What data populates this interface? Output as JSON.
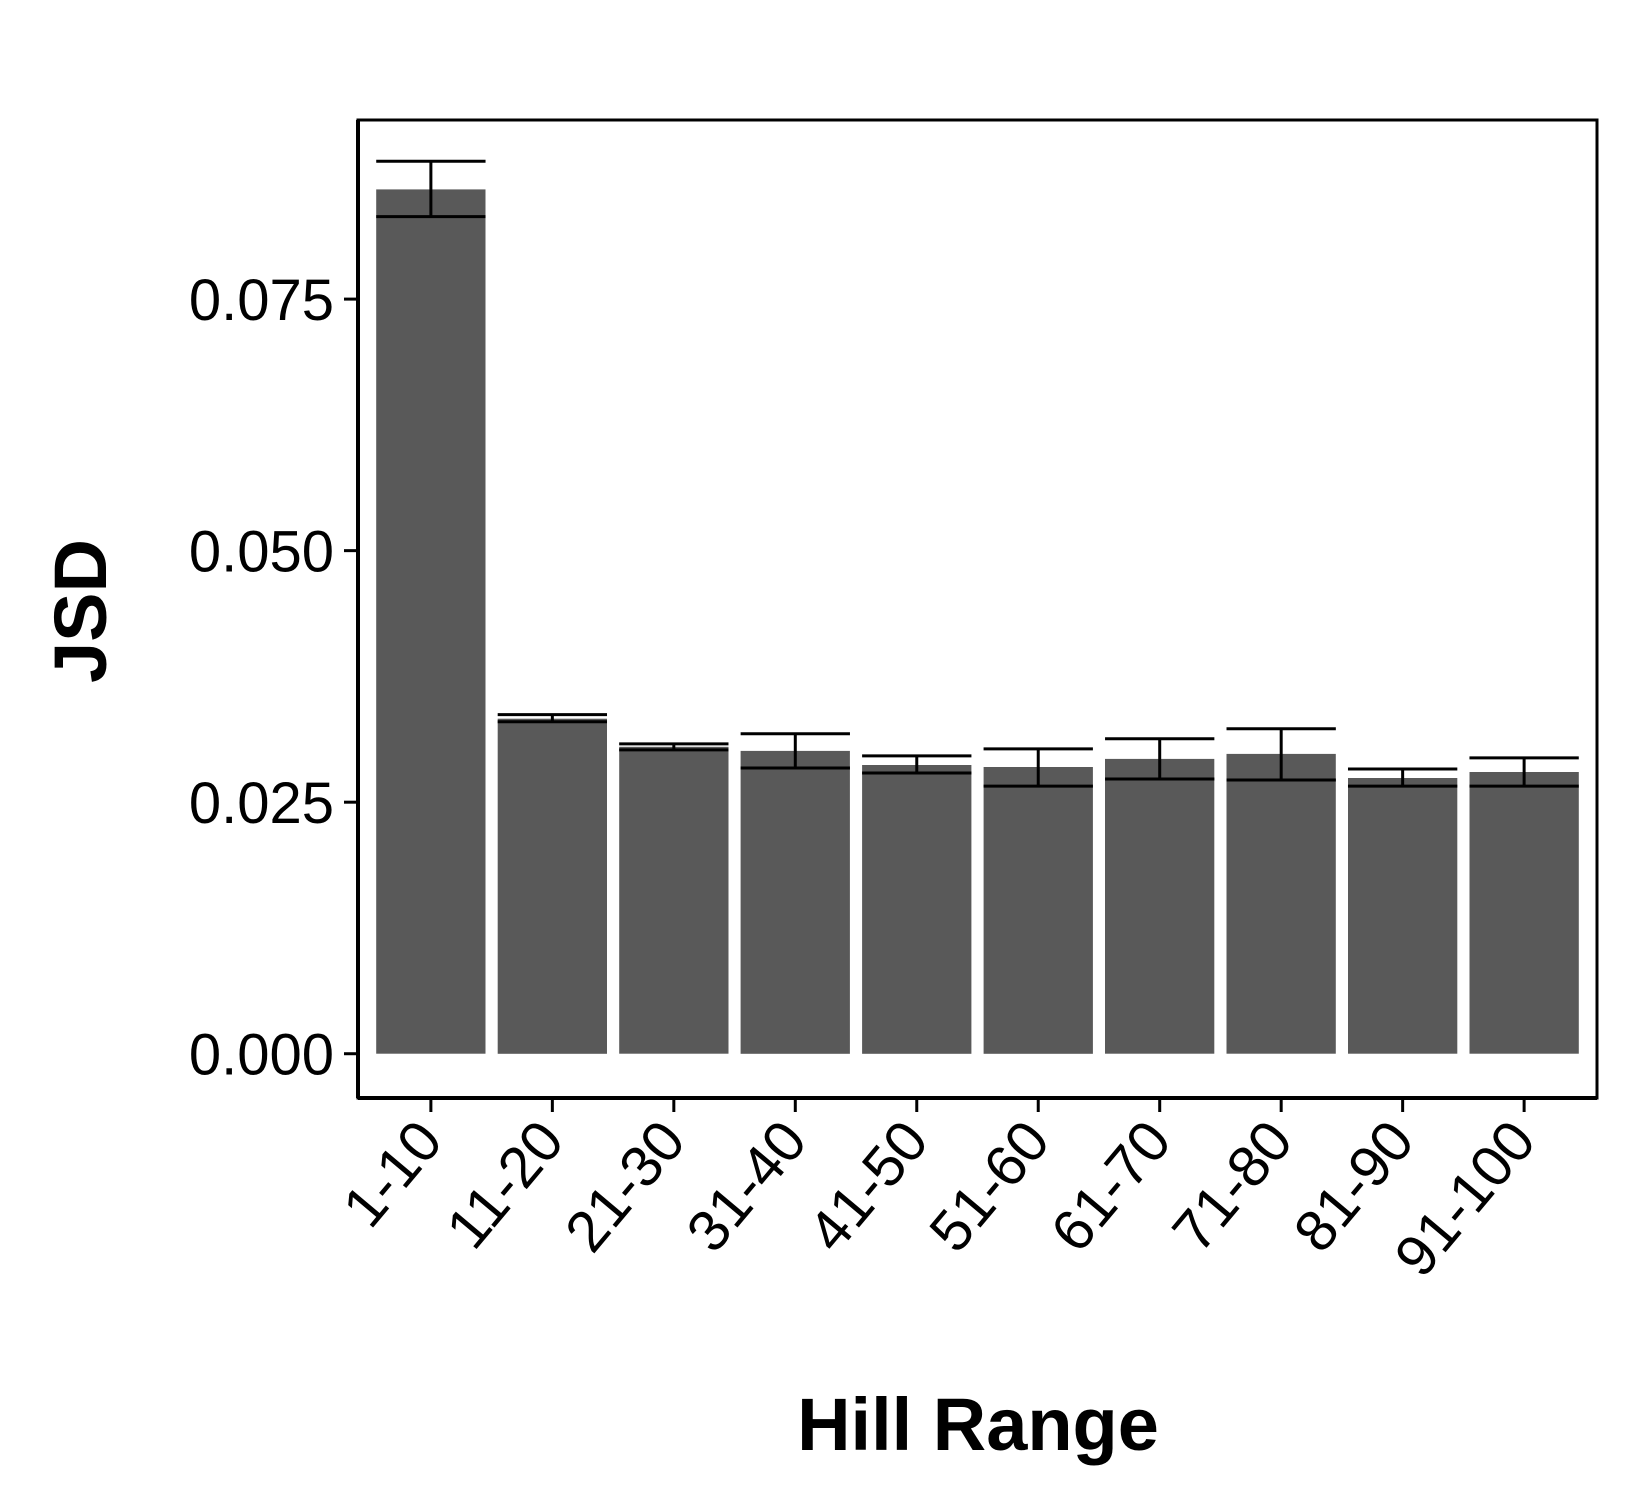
{
  "chart_data": {
    "type": "bar",
    "title": "",
    "xlabel": "Hill Range",
    "ylabel": "JSD",
    "categories": [
      "1-10",
      "11-20",
      "21-30",
      "31-40",
      "41-50",
      "51-60",
      "61-70",
      "71-80",
      "81-90",
      "91-100"
    ],
    "values": [
      0.0859,
      0.0333,
      0.0305,
      0.0301,
      0.0287,
      0.0285,
      0.0293,
      0.0298,
      0.0274,
      0.028
    ],
    "error_low": [
      0.0832,
      0.033,
      0.0302,
      0.0284,
      0.0279,
      0.0266,
      0.0273,
      0.0272,
      0.0266,
      0.0266
    ],
    "error_high": [
      0.0887,
      0.0337,
      0.0308,
      0.0318,
      0.0296,
      0.0303,
      0.0313,
      0.0323,
      0.0283,
      0.0294
    ],
    "ylim": [
      -0.0044,
      0.0928
    ],
    "y_ticks": [
      0.0,
      0.025,
      0.05,
      0.075
    ],
    "y_tick_labels": [
      "0.000",
      "0.025",
      "0.050",
      "0.075"
    ],
    "grid": false,
    "legend": "none",
    "bar_color": "#595959"
  }
}
